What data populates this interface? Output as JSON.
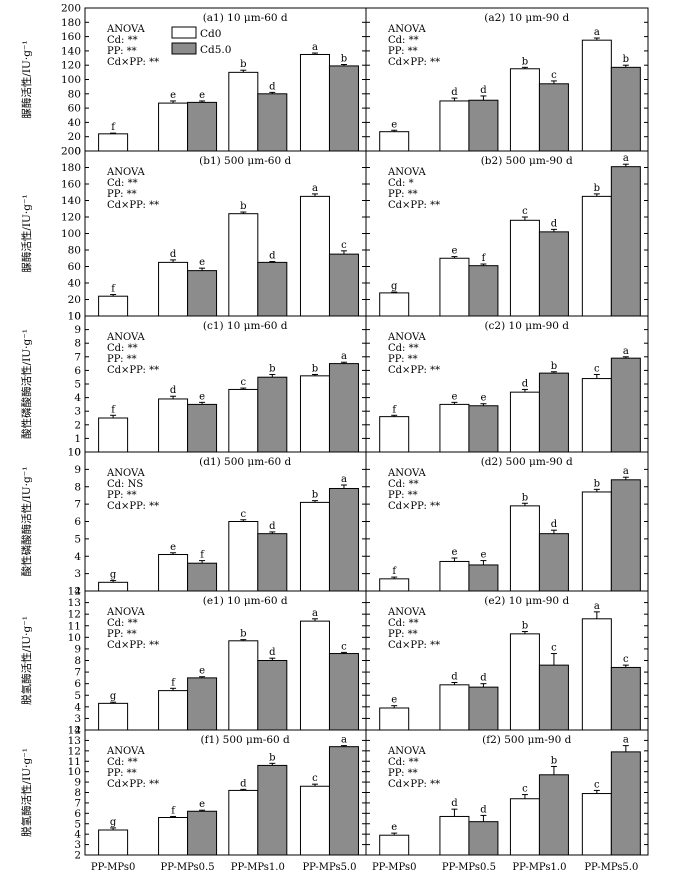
{
  "legend": [
    {
      "label": "Cd0",
      "color": "#ffffff"
    },
    {
      "label": "Cd5.0",
      "color": "#8c8c8c"
    }
  ],
  "categories": [
    "PP-MPs0",
    "PP-MPs0.5",
    "PP-MPs1.0",
    "PP-MPs5.0"
  ],
  "rows": [
    {
      "ylabel": "脲酶活性/IU·g⁻¹",
      "ylim": [
        0,
        200
      ],
      "ticks": [
        0,
        20,
        40,
        60,
        80,
        100,
        120,
        140,
        160,
        180,
        200
      ]
    },
    {
      "ylabel": "脲酶活性/IU·g⁻¹",
      "ylim": [
        0,
        200
      ],
      "ticks": [
        0,
        20,
        40,
        60,
        80,
        100,
        120,
        140,
        160,
        180,
        200
      ]
    },
    {
      "ylabel": "酸性磷酸酶活性/IU·g⁻¹",
      "ylim": [
        0,
        10
      ],
      "ticks": [
        0,
        1,
        2,
        3,
        4,
        5,
        6,
        7,
        8,
        9,
        10
      ]
    },
    {
      "ylabel": "酸性磷酸酶活性/IU·g⁻¹",
      "ylim": [
        2,
        10
      ],
      "ticks": [
        2,
        3,
        4,
        5,
        6,
        7,
        8,
        9,
        10
      ]
    },
    {
      "ylabel": "脱氢酶活性/IU·g⁻¹",
      "ylim": [
        2,
        14
      ],
      "ticks": [
        2,
        3,
        4,
        5,
        6,
        7,
        8,
        9,
        10,
        11,
        12,
        13,
        14
      ]
    },
    {
      "ylabel": "脱氢酶活性/IU·g⁻¹",
      "ylim": [
        2,
        14
      ],
      "ticks": [
        2,
        3,
        4,
        5,
        6,
        7,
        8,
        9,
        10,
        11,
        12,
        13,
        14
      ]
    }
  ],
  "chart_data": [
    {
      "type": "bar",
      "title": "(a1) 10 μm-60 d",
      "anova": [
        "ANOVA",
        "Cd: **",
        "PP: **",
        "Cd×PP: **"
      ],
      "series": [
        {
          "name": "Cd0",
          "values": [
            24,
            67,
            110,
            135
          ],
          "errors": [
            1,
            3,
            3,
            2
          ],
          "letters": [
            "f",
            "e",
            "b",
            "a"
          ]
        },
        {
          "name": "Cd5.0",
          "values": [
            null,
            68,
            80,
            119
          ],
          "errors": [
            null,
            2,
            2,
            2
          ],
          "letters": [
            "",
            "e",
            "d",
            "b"
          ]
        }
      ]
    },
    {
      "type": "bar",
      "title": "(a2) 10 μm-90 d",
      "anova": [
        "ANOVA",
        "Cd: **",
        "PP: **",
        "Cd×PP: **"
      ],
      "series": [
        {
          "name": "Cd0",
          "values": [
            27,
            70,
            115,
            155
          ],
          "errors": [
            2,
            4,
            2,
            3
          ],
          "letters": [
            "e",
            "d",
            "b",
            "a"
          ]
        },
        {
          "name": "Cd5.0",
          "values": [
            null,
            71,
            94,
            117
          ],
          "errors": [
            null,
            6,
            4,
            3
          ],
          "letters": [
            "",
            "d",
            "c",
            "b"
          ]
        }
      ]
    },
    {
      "type": "bar",
      "title": "(b1) 500 μm-60 d",
      "anova": [
        "ANOVA",
        "Cd: **",
        "PP: **",
        "Cd×PP: **"
      ],
      "series": [
        {
          "name": "Cd0",
          "values": [
            24,
            65,
            124,
            145
          ],
          "errors": [
            2,
            3,
            2,
            3
          ],
          "letters": [
            "f",
            "d",
            "b",
            "a"
          ]
        },
        {
          "name": "Cd5.0",
          "values": [
            null,
            55,
            65,
            75
          ],
          "errors": [
            null,
            3,
            1,
            4
          ],
          "letters": [
            "",
            "e",
            "d",
            "c"
          ]
        }
      ]
    },
    {
      "type": "bar",
      "title": "(b2) 500 μm-90 d",
      "anova": [
        "ANOVA",
        "Cd: *",
        "PP: **",
        "Cd×PP: **"
      ],
      "series": [
        {
          "name": "Cd0",
          "values": [
            28,
            70,
            116,
            145
          ],
          "errors": [
            1,
            2,
            4,
            3
          ],
          "letters": [
            "g",
            "e",
            "c",
            "b"
          ]
        },
        {
          "name": "Cd5.0",
          "values": [
            null,
            61,
            102,
            181
          ],
          "errors": [
            null,
            2,
            3,
            3
          ],
          "letters": [
            "",
            "f",
            "d",
            "a"
          ]
        }
      ]
    },
    {
      "type": "bar",
      "title": "(c1) 10 μm-60 d",
      "anova": [
        "ANOVA",
        "Cd: **",
        "PP: **",
        "Cd×PP: **"
      ],
      "series": [
        {
          "name": "Cd0",
          "values": [
            2.5,
            3.9,
            4.6,
            5.6
          ],
          "errors": [
            0.2,
            0.2,
            0.1,
            0.1
          ],
          "letters": [
            "f",
            "d",
            "c",
            "b"
          ]
        },
        {
          "name": "Cd5.0",
          "values": [
            null,
            3.5,
            5.5,
            6.5
          ],
          "errors": [
            null,
            0.15,
            0.2,
            0.1
          ],
          "letters": [
            "",
            "e",
            "b",
            "a"
          ]
        }
      ]
    },
    {
      "type": "bar",
      "title": "(c2) 10 μm-90 d",
      "anova": [
        "ANOVA",
        "Cd: **",
        "PP: **",
        "Cd×PP: **"
      ],
      "series": [
        {
          "name": "Cd0",
          "values": [
            2.6,
            3.5,
            4.4,
            5.4
          ],
          "errors": [
            0.1,
            0.15,
            0.2,
            0.3
          ],
          "letters": [
            "f",
            "e",
            "d",
            "c"
          ]
        },
        {
          "name": "Cd5.0",
          "values": [
            null,
            3.4,
            5.8,
            6.9
          ],
          "errors": [
            null,
            0.15,
            0.1,
            0.1
          ],
          "letters": [
            "",
            "e",
            "b",
            "a"
          ]
        }
      ]
    },
    {
      "type": "bar",
      "title": "(d1) 500 μm-60 d",
      "anova": [
        "ANOVA",
        "Cd: NS",
        "PP: **",
        "Cd×PP: **"
      ],
      "series": [
        {
          "name": "Cd0",
          "values": [
            2.5,
            4.1,
            6.0,
            7.1
          ],
          "errors": [
            0.1,
            0.1,
            0.1,
            0.1
          ],
          "letters": [
            "g",
            "e",
            "c",
            "b"
          ]
        },
        {
          "name": "Cd5.0",
          "values": [
            null,
            3.6,
            5.3,
            7.9
          ],
          "errors": [
            null,
            0.15,
            0.1,
            0.2
          ],
          "letters": [
            "",
            "f",
            "d",
            "a"
          ]
        }
      ]
    },
    {
      "type": "bar",
      "title": "(d2) 500 μm-90 d",
      "anova": [
        "ANOVA",
        "Cd: **",
        "PP: **",
        "Cd×PP: **"
      ],
      "series": [
        {
          "name": "Cd0",
          "values": [
            2.7,
            3.7,
            6.9,
            7.7
          ],
          "errors": [
            0.1,
            0.2,
            0.15,
            0.15
          ],
          "letters": [
            "f",
            "e",
            "b",
            "b"
          ]
        },
        {
          "name": "Cd5.0",
          "values": [
            null,
            3.5,
            5.3,
            8.4
          ],
          "errors": [
            null,
            0.25,
            0.2,
            0.15
          ],
          "letters": [
            "",
            "e",
            "d",
            "a"
          ]
        }
      ]
    },
    {
      "type": "bar",
      "title": "(e1) 10 μm-60 d",
      "anova": [
        "ANOVA",
        "Cd: **",
        "PP: **",
        "Cd×PP: **"
      ],
      "series": [
        {
          "name": "Cd0",
          "values": [
            4.3,
            5.4,
            9.7,
            11.4
          ],
          "errors": [
            0.1,
            0.2,
            0.1,
            0.2
          ],
          "letters": [
            "g",
            "f",
            "b",
            "a"
          ]
        },
        {
          "name": "Cd5.0",
          "values": [
            null,
            6.5,
            8.0,
            8.6
          ],
          "errors": [
            null,
            0.1,
            0.2,
            0.1
          ],
          "letters": [
            "",
            "e",
            "d",
            "c"
          ]
        }
      ]
    },
    {
      "type": "bar",
      "title": "(e2) 10 μm-90 d",
      "anova": [
        "ANOVA",
        "Cd: **",
        "PP: **",
        "Cd×PP: **"
      ],
      "series": [
        {
          "name": "Cd0",
          "values": [
            3.9,
            5.9,
            10.3,
            11.6
          ],
          "errors": [
            0.2,
            0.2,
            0.2,
            0.6
          ],
          "letters": [
            "e",
            "d",
            "b",
            "a"
          ]
        },
        {
          "name": "Cd5.0",
          "values": [
            null,
            5.7,
            7.6,
            7.4
          ],
          "errors": [
            null,
            0.3,
            1.0,
            0.2
          ],
          "letters": [
            "",
            "d",
            "c",
            "c"
          ]
        }
      ]
    },
    {
      "type": "bar",
      "title": "(f1) 500 μm-60 d",
      "anova": [
        "ANOVA",
        "Cd: **",
        "PP: **",
        "Cd×PP: **"
      ],
      "series": [
        {
          "name": "Cd0",
          "values": [
            4.4,
            5.6,
            8.2,
            8.6
          ],
          "errors": [
            0.2,
            0.1,
            0.1,
            0.2
          ],
          "letters": [
            "g",
            "f",
            "d",
            "c"
          ]
        },
        {
          "name": "Cd5.0",
          "values": [
            null,
            6.2,
            10.6,
            12.4
          ],
          "errors": [
            null,
            0.1,
            0.2,
            0.1
          ],
          "letters": [
            "",
            "e",
            "b",
            "a"
          ]
        }
      ]
    },
    {
      "type": "bar",
      "title": "(f2) 500 μm-90 d",
      "anova": [
        "ANOVA",
        "Cd: **",
        "PP: **",
        "Cd×PP: **"
      ],
      "series": [
        {
          "name": "Cd0",
          "values": [
            3.9,
            5.7,
            7.4,
            7.9
          ],
          "errors": [
            0.2,
            0.7,
            0.4,
            0.3
          ],
          "letters": [
            "e",
            "d",
            "c",
            "c"
          ]
        },
        {
          "name": "Cd5.0",
          "values": [
            null,
            5.2,
            9.7,
            11.9
          ],
          "errors": [
            null,
            0.6,
            0.8,
            0.6
          ],
          "letters": [
            "",
            "d",
            "b",
            "a"
          ]
        }
      ]
    }
  ]
}
